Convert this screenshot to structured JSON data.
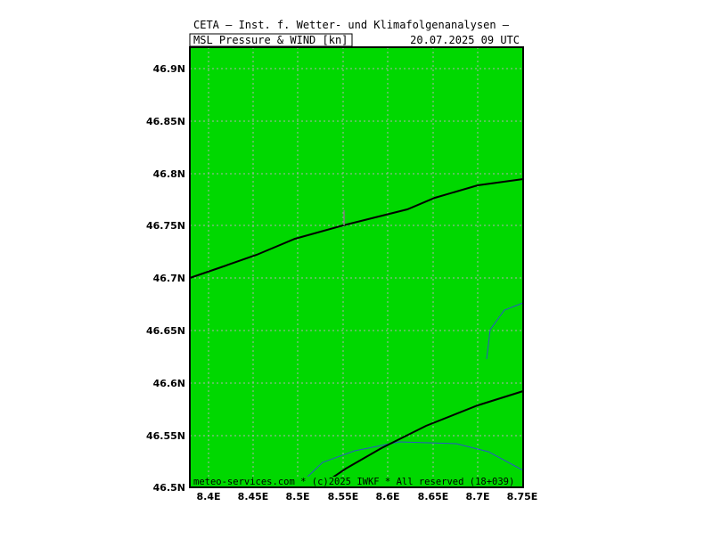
{
  "header": {
    "title": "CETA — Inst. f. Wetter- und Klimafolgenanalysen —",
    "field_label": "MSL_Pressure_&_WIND_[kn]",
    "valid_time": "20.07.2025  09  UTC"
  },
  "footer": {
    "credit": "meteo-services.com * (c)2025 IWKF * All reserved (18+039)"
  },
  "axes": {
    "y_ticks": [
      "46.9N",
      "46.85N",
      "46.8N",
      "46.75N",
      "46.7N",
      "46.65N",
      "46.6N",
      "46.55N",
      "46.5N"
    ],
    "x_ticks": [
      "8.4E",
      "8.45E",
      "8.5E",
      "8.55E",
      "8.6E",
      "8.65E",
      "8.7E",
      "8.75E"
    ]
  },
  "colors": {
    "land": "#00d800",
    "grid": "#b0b0b0",
    "isobar": "#000000",
    "river": "#2a55c8",
    "wind_barb": "#808080"
  }
}
